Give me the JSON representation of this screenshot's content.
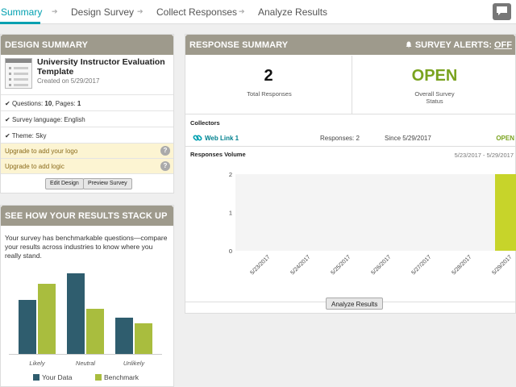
{
  "nav": {
    "tabs": [
      {
        "label": "Summary",
        "active": true
      },
      {
        "label": "Design Survey",
        "active": false
      },
      {
        "label": "Collect Responses",
        "active": false
      },
      {
        "label": "Analyze Results",
        "active": false
      }
    ],
    "chat_icon": "chat-bubble-icon"
  },
  "design_summary": {
    "header": "DESIGN SUMMARY",
    "survey_name": "University Instructor Evaluation Template",
    "created": "Created on 5/29/2017",
    "questions_label": "Questions:",
    "questions_value": "10",
    "pages_label": ", Pages:",
    "pages_value": "1",
    "language": "Survey language: English",
    "theme": "Theme: Sky",
    "upgrade_logo": "Upgrade to add your logo",
    "upgrade_logic": "Upgrade to add logic",
    "edit_button": "Edit Design",
    "preview_button": "Preview Survey"
  },
  "stack_up": {
    "header": "SEE HOW YOUR RESULTS STACK UP",
    "description": "Your survey has benchmarkable questions—compare your results across industries to know where you really stand."
  },
  "response_summary": {
    "header": "RESPONSE SUMMARY",
    "alerts_label": "SURVEY ALERTS:",
    "alerts_value": "OFF",
    "total_value": "2",
    "total_label": "Total Responses",
    "status_value": "OPEN",
    "status_label": "Overall Survey Status",
    "collectors_label": "Collectors",
    "collector": {
      "name": "Web Link 1",
      "responses": "Responses: 2",
      "since": "Since 5/29/2017",
      "status": "OPEN"
    },
    "volume_label": "Responses Volume",
    "volume_range": "5/23/2017 - 5/29/2017",
    "analyze_button": "Analyze Results"
  },
  "colors": {
    "accent": "#00a0b0",
    "open_green": "#7aa31f",
    "header_gray": "#9e9a8c",
    "your_data": "#2f5d6e",
    "benchmark": "#a9bd3e",
    "volume_bar": "#c7d42a"
  },
  "chart_data": [
    {
      "type": "bar",
      "categories": [
        "Likely",
        "Neutral",
        "Unlikely"
      ],
      "series": [
        {
          "name": "Your Data",
          "values": [
            67,
            100,
            45
          ]
        },
        {
          "name": "Benchmark",
          "values": [
            87,
            56,
            38
          ]
        }
      ],
      "legend": "bottom",
      "grid": false
    },
    {
      "type": "bar",
      "categories": [
        "5/23/2017",
        "5/24/2017",
        "5/25/2017",
        "5/26/2017",
        "5/27/2017",
        "5/28/2017",
        "5/29/2017"
      ],
      "values": [
        0,
        0,
        0,
        0,
        0,
        0,
        2
      ],
      "yticks": [
        "0",
        "1",
        "2"
      ],
      "ylim": [
        0,
        2
      ],
      "grid": false
    }
  ]
}
